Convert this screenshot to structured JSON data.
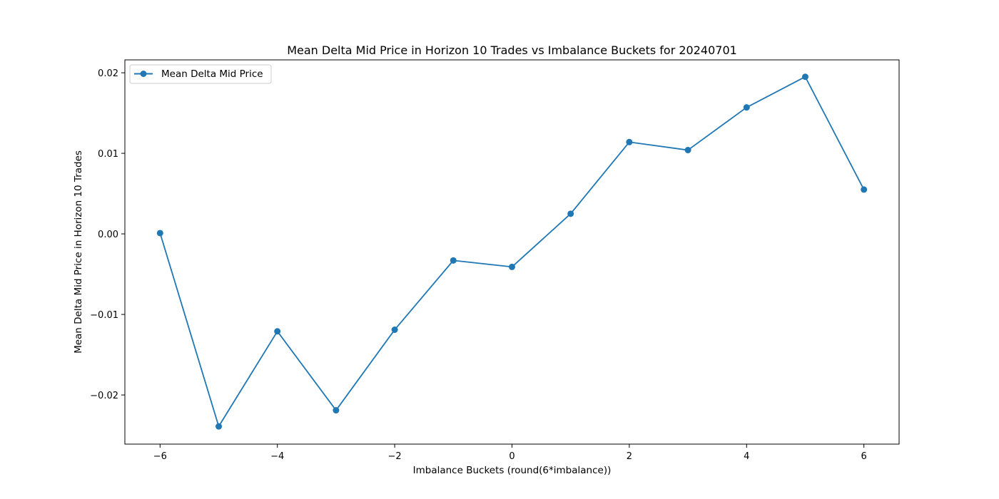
{
  "chart_data": {
    "type": "line",
    "title": "Mean Delta Mid Price in Horizon 10 Trades vs Imbalance Buckets for 20240701",
    "xlabel": "Imbalance Buckets (round(6*imbalance))",
    "ylabel": "Mean Delta Mid Price in Horizon 10 Trades",
    "xlim": [
      -6.6,
      6.6
    ],
    "ylim": [
      -0.0261,
      0.0216
    ],
    "xticks": [
      -6,
      -4,
      -2,
      0,
      2,
      4,
      6
    ],
    "xtick_labels": [
      "−6",
      "−4",
      "−2",
      "0",
      "2",
      "4",
      "6"
    ],
    "yticks": [
      -0.02,
      -0.01,
      0.0,
      0.01,
      0.02
    ],
    "ytick_labels": [
      "−0.02",
      "−0.01",
      "0.00",
      "0.01",
      "0.02"
    ],
    "grid": false,
    "legend_position": "upper left",
    "series": [
      {
        "name": "Mean Delta Mid Price",
        "color": "#1f77b4",
        "marker": "circle",
        "x": [
          -6,
          -5,
          -4,
          -3,
          -2,
          -1,
          0,
          1,
          2,
          3,
          4,
          5,
          6
        ],
        "y": [
          0.0001,
          -0.0239,
          -0.0121,
          -0.0219,
          -0.0119,
          -0.0033,
          -0.0041,
          0.0025,
          0.0114,
          0.0104,
          0.0157,
          0.0195,
          0.0055
        ]
      }
    ]
  }
}
